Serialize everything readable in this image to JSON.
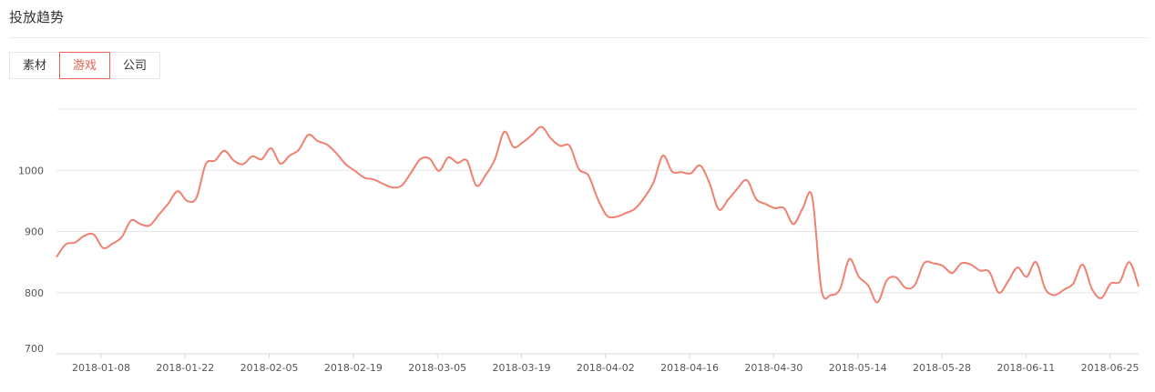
{
  "header": {
    "title": "投放趋势"
  },
  "tabs": [
    {
      "label": "素材",
      "active": false
    },
    {
      "label": "游戏",
      "active": true
    },
    {
      "label": "公司",
      "active": false
    }
  ],
  "colors": {
    "accent": "#e8634d",
    "line": "#f08070",
    "grid": "#e6e6e6"
  },
  "chart_data": {
    "type": "line",
    "title": "",
    "xlabel": "",
    "ylabel": "",
    "ylim": [
      700,
      1100
    ],
    "y_ticks": [
      700,
      800,
      900,
      1000
    ],
    "x_ticks": [
      "2018-01-08",
      "2018-01-22",
      "2018-02-05",
      "2018-02-19",
      "2018-03-05",
      "2018-03-19",
      "2018-04-02",
      "2018-04-16",
      "2018-04-30",
      "2018-05-14",
      "2018-05-28",
      "2018-06-11",
      "2018-06-25"
    ],
    "grid": true,
    "legend": "none",
    "series": [
      {
        "values": [
          858,
          879,
          882,
          893,
          895,
          873,
          880,
          891,
          918,
          912,
          910,
          928,
          946,
          966,
          950,
          955,
          1010,
          1016,
          1032,
          1016,
          1010,
          1023,
          1018,
          1036,
          1011,
          1024,
          1034,
          1058,
          1048,
          1042,
          1028,
          1010,
          999,
          988,
          985,
          978,
          972,
          975,
          996,
          1018,
          1019,
          999,
          1021,
          1012,
          1016,
          975,
          992,
          1018,
          1063,
          1038,
          1046,
          1058,
          1071,
          1052,
          1040,
          1040,
          1002,
          992,
          954,
          926,
          924,
          930,
          937,
          955,
          980,
          1024,
          998,
          997,
          995,
          1008,
          979,
          936,
          952,
          970,
          984,
          953,
          945,
          938,
          938,
          912,
          938,
          957,
          805,
          796,
          806,
          855,
          826,
          812,
          784,
          820,
          825,
          808,
          812,
          848,
          848,
          844,
          832,
          848,
          846,
          836,
          834,
          800,
          818,
          841,
          826,
          850,
          806,
          796,
          805,
          815,
          846,
          806,
          791,
          815,
          818,
          850,
          810
        ]
      }
    ]
  }
}
